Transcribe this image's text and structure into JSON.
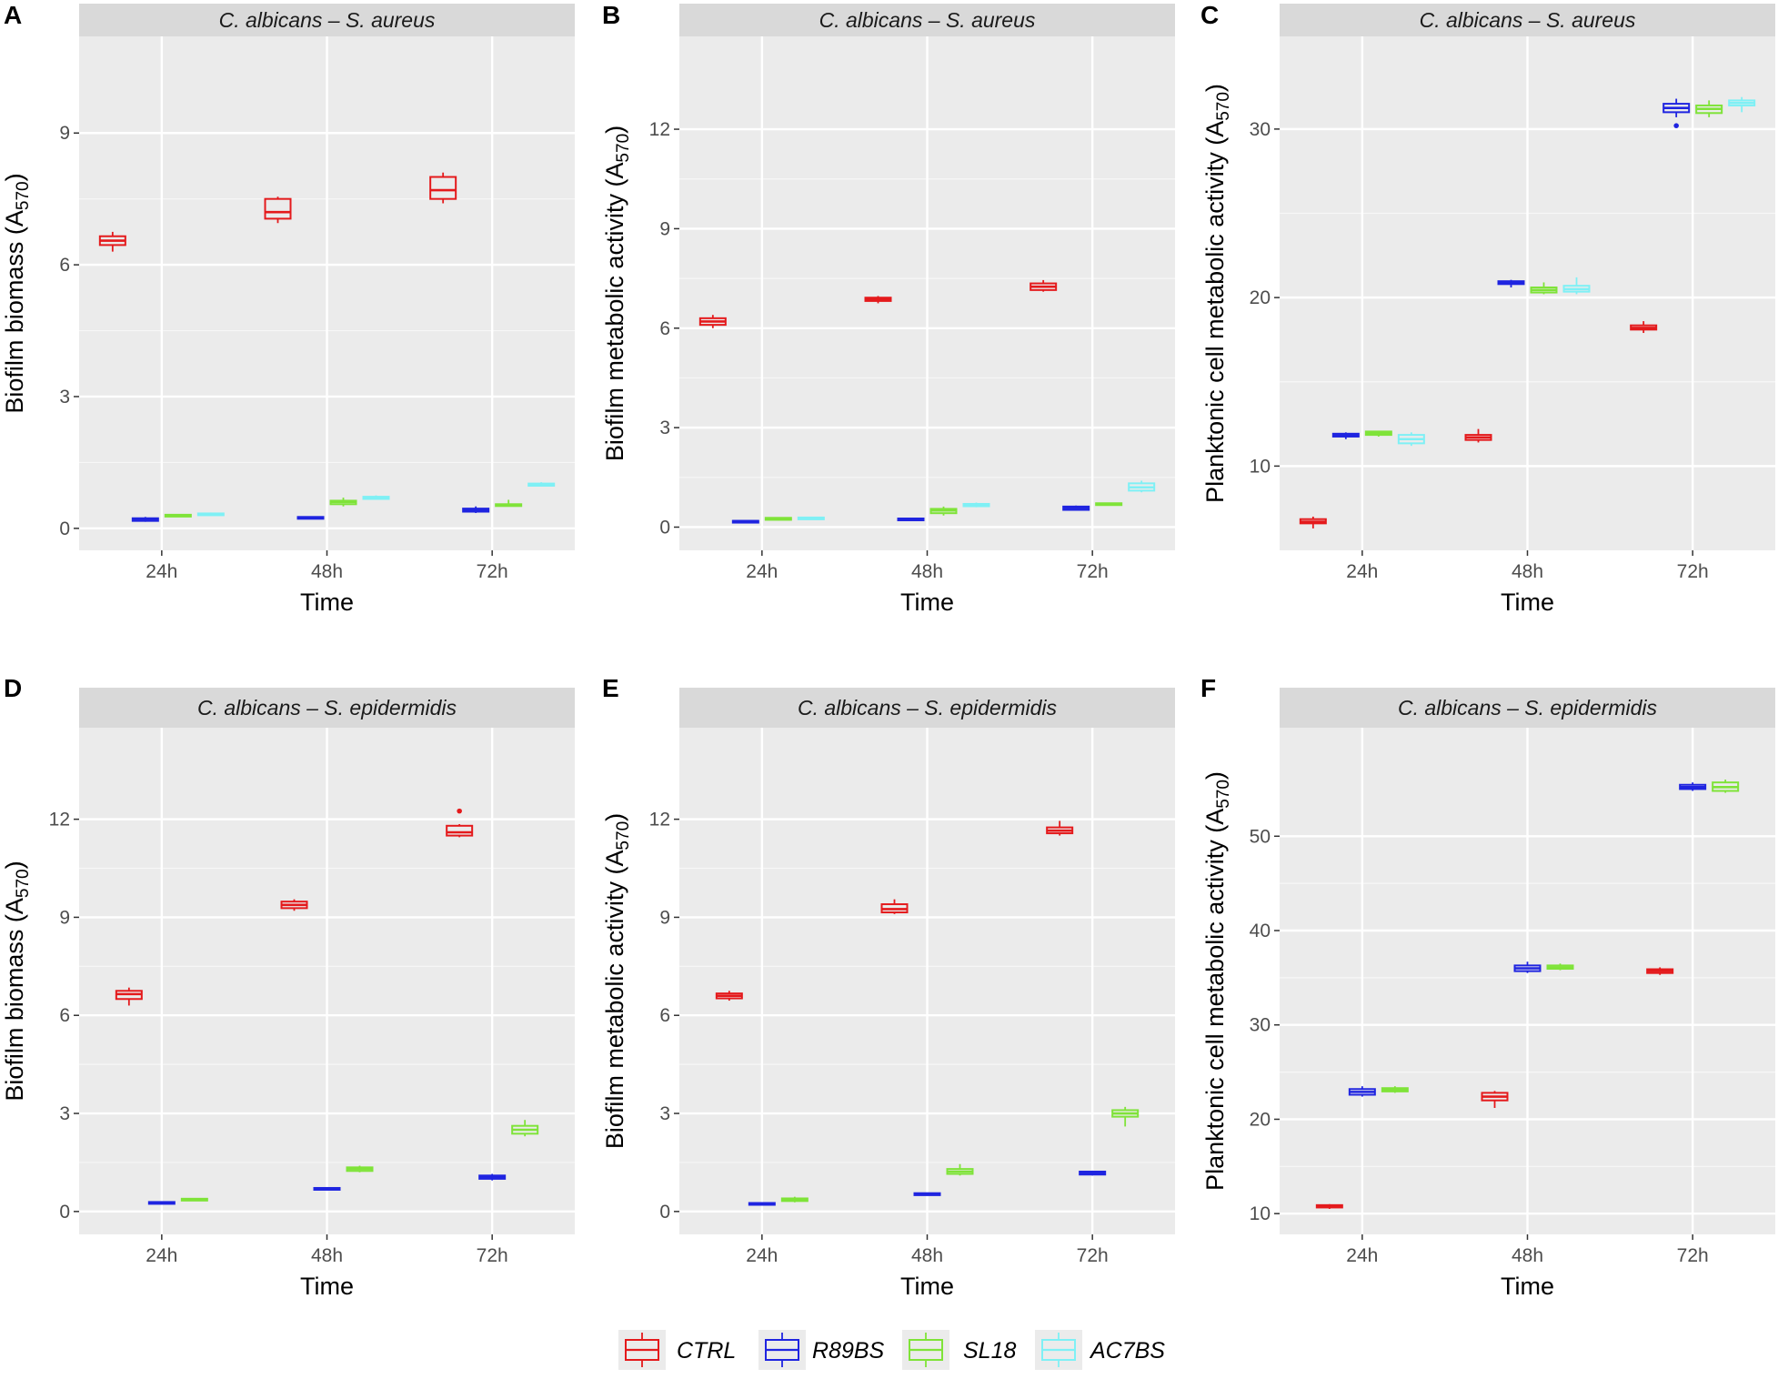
{
  "colors": {
    "CTRL": "#e41a1c",
    "R89BS": "#1f24e0",
    "SL18": "#7fe339",
    "AC7BS": "#7ff0f5"
  },
  "legend": {
    "items": [
      {
        "key": "CTRL",
        "label": "CTRL"
      },
      {
        "key": "R89BS",
        "label": "R89BS"
      },
      {
        "key": "SL18",
        "label": "SL18"
      },
      {
        "key": "AC7BS",
        "label": "AC7BS"
      }
    ]
  },
  "chart_data": [
    {
      "panel": "A",
      "type": "box",
      "title": "C. albicans – S. aureus",
      "xlabel": "Time",
      "ylabel": "Biofilm biomass (A570)",
      "ylabel_main": "Biofilm biomass (A",
      "ylabel_sub": "570",
      "ylabel_end": ")",
      "ylim": [
        -0.5,
        11.2
      ],
      "yticks": [
        0,
        3,
        6,
        9
      ],
      "ytick_labels": [
        "0",
        "3",
        "6",
        "9"
      ],
      "categories": [
        "24h",
        "48h",
        "72h"
      ],
      "series": [
        {
          "name": "CTRL",
          "boxes": [
            {
              "x": "24h",
              "min": 6.3,
              "q1": 6.45,
              "median": 6.55,
              "q3": 6.65,
              "max": 6.75
            },
            {
              "x": "48h",
              "min": 6.95,
              "q1": 7.05,
              "median": 7.2,
              "q3": 7.5,
              "max": 7.55
            },
            {
              "x": "72h",
              "min": 7.4,
              "q1": 7.5,
              "median": 7.7,
              "q3": 8.0,
              "max": 8.1
            }
          ]
        },
        {
          "name": "R89BS",
          "boxes": [
            {
              "x": "24h",
              "min": 0.15,
              "q1": 0.17,
              "median": 0.2,
              "q3": 0.23,
              "max": 0.26
            },
            {
              "x": "48h",
              "min": 0.22,
              "q1": 0.23,
              "median": 0.25,
              "q3": 0.26,
              "max": 0.27
            },
            {
              "x": "72h",
              "min": 0.35,
              "q1": 0.38,
              "median": 0.42,
              "q3": 0.45,
              "max": 0.5
            }
          ]
        },
        {
          "name": "SL18",
          "boxes": [
            {
              "x": "24h",
              "min": 0.26,
              "q1": 0.27,
              "median": 0.29,
              "q3": 0.31,
              "max": 0.32
            },
            {
              "x": "48h",
              "min": 0.5,
              "q1": 0.55,
              "median": 0.6,
              "q3": 0.63,
              "max": 0.7
            },
            {
              "x": "72h",
              "min": 0.5,
              "q1": 0.51,
              "median": 0.53,
              "q3": 0.55,
              "max": 0.65
            }
          ]
        },
        {
          "name": "AC7BS",
          "boxes": [
            {
              "x": "24h",
              "min": 0.3,
              "q1": 0.31,
              "median": 0.33,
              "q3": 0.34,
              "max": 0.36
            },
            {
              "x": "48h",
              "min": 0.65,
              "q1": 0.67,
              "median": 0.7,
              "q3": 0.72,
              "max": 0.75
            },
            {
              "x": "72h",
              "min": 0.95,
              "q1": 0.97,
              "median": 1.0,
              "q3": 1.02,
              "max": 1.05
            }
          ]
        }
      ]
    },
    {
      "panel": "B",
      "type": "box",
      "title": "C. albicans – S. aureus",
      "xlabel": "Time",
      "ylabel": "Biofilm metabolic activity (A570)",
      "ylabel_main": "Biofilm metabolic activity (A",
      "ylabel_sub": "570",
      "ylabel_end": ")",
      "ylim": [
        -0.7,
        14.8
      ],
      "yticks": [
        0,
        3,
        6,
        9,
        12
      ],
      "ytick_labels": [
        "0",
        "3",
        "6",
        "9",
        "12"
      ],
      "categories": [
        "24h",
        "48h",
        "72h"
      ],
      "series": [
        {
          "name": "CTRL",
          "boxes": [
            {
              "x": "24h",
              "min": 6.0,
              "q1": 6.1,
              "median": 6.2,
              "q3": 6.3,
              "max": 6.4
            },
            {
              "x": "48h",
              "min": 6.75,
              "q1": 6.82,
              "median": 6.87,
              "q3": 6.92,
              "max": 6.97
            },
            {
              "x": "72h",
              "min": 7.1,
              "q1": 7.15,
              "median": 7.25,
              "q3": 7.35,
              "max": 7.45
            }
          ]
        },
        {
          "name": "R89BS",
          "boxes": [
            {
              "x": "24h",
              "min": 0.15,
              "q1": 0.17,
              "median": 0.18,
              "q3": 0.19,
              "max": 0.2
            },
            {
              "x": "48h",
              "min": 0.22,
              "q1": 0.24,
              "median": 0.25,
              "q3": 0.26,
              "max": 0.28
            },
            {
              "x": "72h",
              "min": 0.5,
              "q1": 0.52,
              "median": 0.58,
              "q3": 0.62,
              "max": 0.65
            }
          ]
        },
        {
          "name": "SL18",
          "boxes": [
            {
              "x": "24h",
              "min": 0.2,
              "q1": 0.22,
              "median": 0.25,
              "q3": 0.28,
              "max": 0.3
            },
            {
              "x": "48h",
              "min": 0.35,
              "q1": 0.42,
              "median": 0.5,
              "q3": 0.55,
              "max": 0.62
            },
            {
              "x": "72h",
              "min": 0.65,
              "q1": 0.67,
              "median": 0.7,
              "q3": 0.72,
              "max": 0.74
            }
          ]
        },
        {
          "name": "AC7BS",
          "boxes": [
            {
              "x": "24h",
              "min": 0.23,
              "q1": 0.25,
              "median": 0.27,
              "q3": 0.29,
              "max": 0.31
            },
            {
              "x": "48h",
              "min": 0.6,
              "q1": 0.63,
              "median": 0.67,
              "q3": 0.7,
              "max": 0.74
            },
            {
              "x": "72h",
              "min": 1.05,
              "q1": 1.1,
              "median": 1.2,
              "q3": 1.32,
              "max": 1.4
            }
          ]
        }
      ]
    },
    {
      "panel": "C",
      "type": "box",
      "title": "C. albicans – S. aureus",
      "xlabel": "Time",
      "ylabel": "Planktonic cell metabolic activity (A570)",
      "ylabel_main": "Planktonic cell metabolic activity (A",
      "ylabel_sub": "570",
      "ylabel_end": ")",
      "ylim": [
        5.0,
        35.5
      ],
      "yticks": [
        10,
        20,
        30
      ],
      "ytick_labels": [
        "10",
        "20",
        "30"
      ],
      "categories": [
        "24h",
        "48h",
        "72h"
      ],
      "series": [
        {
          "name": "CTRL",
          "boxes": [
            {
              "x": "24h",
              "min": 6.3,
              "q1": 6.6,
              "median": 6.7,
              "q3": 6.85,
              "max": 7.0
            },
            {
              "x": "48h",
              "min": 11.4,
              "q1": 11.55,
              "median": 11.7,
              "q3": 11.85,
              "max": 12.2
            },
            {
              "x": "72h",
              "min": 17.9,
              "q1": 18.1,
              "median": 18.2,
              "q3": 18.35,
              "max": 18.6
            }
          ]
        },
        {
          "name": "R89BS",
          "boxes": [
            {
              "x": "24h",
              "min": 11.6,
              "q1": 11.75,
              "median": 11.85,
              "q3": 11.92,
              "max": 12.0
            },
            {
              "x": "48h",
              "min": 20.6,
              "q1": 20.8,
              "median": 20.9,
              "q3": 20.97,
              "max": 21.05
            },
            {
              "x": "72h",
              "min": 30.7,
              "q1": 31.0,
              "median": 31.25,
              "q3": 31.5,
              "max": 31.8
            }
          ]
        },
        {
          "name": "SL18",
          "boxes": [
            {
              "x": "24h",
              "min": 11.75,
              "q1": 11.85,
              "median": 11.95,
              "q3": 12.05,
              "max": 12.1
            },
            {
              "x": "48h",
              "min": 20.2,
              "q1": 20.3,
              "median": 20.45,
              "q3": 20.6,
              "max": 20.9
            },
            {
              "x": "72h",
              "min": 30.7,
              "q1": 30.95,
              "median": 31.2,
              "q3": 31.4,
              "max": 31.7
            }
          ]
        },
        {
          "name": "AC7BS",
          "boxes": [
            {
              "x": "24h",
              "min": 11.2,
              "q1": 11.35,
              "median": 11.6,
              "q3": 11.85,
              "max": 12.0
            },
            {
              "x": "48h",
              "min": 20.2,
              "q1": 20.35,
              "median": 20.5,
              "q3": 20.7,
              "max": 21.2
            },
            {
              "x": "72h",
              "min": 31.0,
              "q1": 31.4,
              "median": 31.55,
              "q3": 31.7,
              "max": 31.9
            }
          ]
        }
      ],
      "outliers": [
        {
          "series": "R89BS",
          "x": "72h",
          "y": 30.2
        }
      ]
    },
    {
      "panel": "D",
      "type": "box",
      "title": "C. albicans – S. epidermidis",
      "xlabel": "Time",
      "ylabel": "Biofilm biomass (A570)",
      "ylabel_main": "Biofilm biomass (A",
      "ylabel_sub": "570",
      "ylabel_end": ")",
      "ylim": [
        -0.7,
        14.8
      ],
      "yticks": [
        0,
        3,
        6,
        9,
        12
      ],
      "ytick_labels": [
        "0",
        "3",
        "6",
        "9",
        "12"
      ],
      "categories": [
        "24h",
        "48h",
        "72h"
      ],
      "series": [
        {
          "name": "CTRL",
          "boxes": [
            {
              "x": "24h",
              "min": 6.3,
              "q1": 6.5,
              "median": 6.65,
              "q3": 6.75,
              "max": 6.85
            },
            {
              "x": "48h",
              "min": 9.2,
              "q1": 9.28,
              "median": 9.38,
              "q3": 9.48,
              "max": 9.55
            },
            {
              "x": "72h",
              "min": 11.45,
              "q1": 11.5,
              "median": 11.6,
              "q3": 11.8,
              "max": 11.85
            }
          ]
        },
        {
          "name": "R89BS",
          "boxes": [
            {
              "x": "24h",
              "min": 0.24,
              "q1": 0.25,
              "median": 0.27,
              "q3": 0.29,
              "max": 0.3
            },
            {
              "x": "48h",
              "min": 0.65,
              "q1": 0.67,
              "median": 0.7,
              "q3": 0.72,
              "max": 0.74
            },
            {
              "x": "72h",
              "min": 0.95,
              "q1": 1.0,
              "median": 1.05,
              "q3": 1.1,
              "max": 1.15
            }
          ]
        },
        {
          "name": "SL18",
          "boxes": [
            {
              "x": "24h",
              "min": 0.33,
              "q1": 0.35,
              "median": 0.37,
              "q3": 0.39,
              "max": 0.41
            },
            {
              "x": "48h",
              "min": 1.2,
              "q1": 1.24,
              "median": 1.3,
              "q3": 1.35,
              "max": 1.4
            },
            {
              "x": "72h",
              "min": 2.3,
              "q1": 2.38,
              "median": 2.5,
              "q3": 2.62,
              "max": 2.8
            }
          ]
        }
      ],
      "outliers": [
        {
          "series": "CTRL",
          "x": "72h",
          "y": 12.25
        }
      ]
    },
    {
      "panel": "E",
      "type": "box",
      "title": "C. albicans – S. epidermidis",
      "xlabel": "Time",
      "ylabel": "Biofilm metabolic activity (A570)",
      "ylabel_main": "Biofilm metabolic activity (A",
      "ylabel_sub": "570",
      "ylabel_end": ")",
      "ylim": [
        -0.7,
        14.8
      ],
      "yticks": [
        0,
        3,
        6,
        9,
        12
      ],
      "ytick_labels": [
        "0",
        "3",
        "6",
        "9",
        "12"
      ],
      "categories": [
        "24h",
        "48h",
        "72h"
      ],
      "series": [
        {
          "name": "CTRL",
          "boxes": [
            {
              "x": "24h",
              "min": 6.45,
              "q1": 6.52,
              "median": 6.6,
              "q3": 6.67,
              "max": 6.75
            },
            {
              "x": "48h",
              "min": 9.1,
              "q1": 9.15,
              "median": 9.25,
              "q3": 9.4,
              "max": 9.55
            },
            {
              "x": "72h",
              "min": 11.5,
              "q1": 11.57,
              "median": 11.65,
              "q3": 11.75,
              "max": 11.95
            }
          ]
        },
        {
          "name": "R89BS",
          "boxes": [
            {
              "x": "24h",
              "min": 0.22,
              "q1": 0.23,
              "median": 0.25,
              "q3": 0.26,
              "max": 0.27
            },
            {
              "x": "48h",
              "min": 0.48,
              "q1": 0.5,
              "median": 0.53,
              "q3": 0.56,
              "max": 0.58
            },
            {
              "x": "72h",
              "min": 1.1,
              "q1": 1.13,
              "median": 1.18,
              "q3": 1.22,
              "max": 1.25
            }
          ]
        },
        {
          "name": "SL18",
          "boxes": [
            {
              "x": "24h",
              "min": 0.28,
              "q1": 0.32,
              "median": 0.36,
              "q3": 0.4,
              "max": 0.45
            },
            {
              "x": "48h",
              "min": 1.1,
              "q1": 1.15,
              "median": 1.22,
              "q3": 1.3,
              "max": 1.45
            },
            {
              "x": "72h",
              "min": 2.6,
              "q1": 2.9,
              "median": 3.0,
              "q3": 3.1,
              "max": 3.2
            }
          ]
        }
      ]
    },
    {
      "panel": "F",
      "type": "box",
      "title": "C. albicans – S. epidermidis",
      "xlabel": "Time",
      "ylabel": "Planktonic cell metabolic activity (A570)",
      "ylabel_main": "Planktonic cell metabolic activity (A",
      "ylabel_sub": "570",
      "ylabel_end": ")",
      "ylim": [
        7.8,
        61.5
      ],
      "yticks": [
        10,
        20,
        30,
        40,
        50
      ],
      "ytick_labels": [
        "10",
        "20",
        "30",
        "40",
        "50"
      ],
      "categories": [
        "24h",
        "48h",
        "72h"
      ],
      "series": [
        {
          "name": "CTRL",
          "boxes": [
            {
              "x": "24h",
              "min": 10.5,
              "q1": 10.65,
              "median": 10.8,
              "q3": 10.9,
              "max": 11.0
            },
            {
              "x": "48h",
              "min": 21.2,
              "q1": 22.0,
              "median": 22.4,
              "q3": 22.8,
              "max": 23.0
            },
            {
              "x": "72h",
              "min": 35.3,
              "q1": 35.5,
              "median": 35.7,
              "q3": 35.9,
              "max": 36.1
            }
          ]
        },
        {
          "name": "R89BS",
          "boxes": [
            {
              "x": "24h",
              "min": 22.4,
              "q1": 22.6,
              "median": 22.9,
              "q3": 23.2,
              "max": 23.5
            },
            {
              "x": "48h",
              "min": 35.5,
              "q1": 35.7,
              "median": 36.0,
              "q3": 36.3,
              "max": 36.7
            },
            {
              "x": "72h",
              "min": 54.8,
              "q1": 55.0,
              "median": 55.2,
              "q3": 55.45,
              "max": 55.7
            }
          ]
        },
        {
          "name": "SL18",
          "boxes": [
            {
              "x": "24h",
              "min": 22.8,
              "q1": 22.95,
              "median": 23.1,
              "q3": 23.3,
              "max": 23.5
            },
            {
              "x": "48h",
              "min": 35.8,
              "q1": 35.95,
              "median": 36.1,
              "q3": 36.3,
              "max": 36.5
            },
            {
              "x": "72h",
              "min": 54.6,
              "q1": 54.8,
              "median": 55.2,
              "q3": 55.7,
              "max": 56.0
            }
          ]
        }
      ]
    }
  ]
}
